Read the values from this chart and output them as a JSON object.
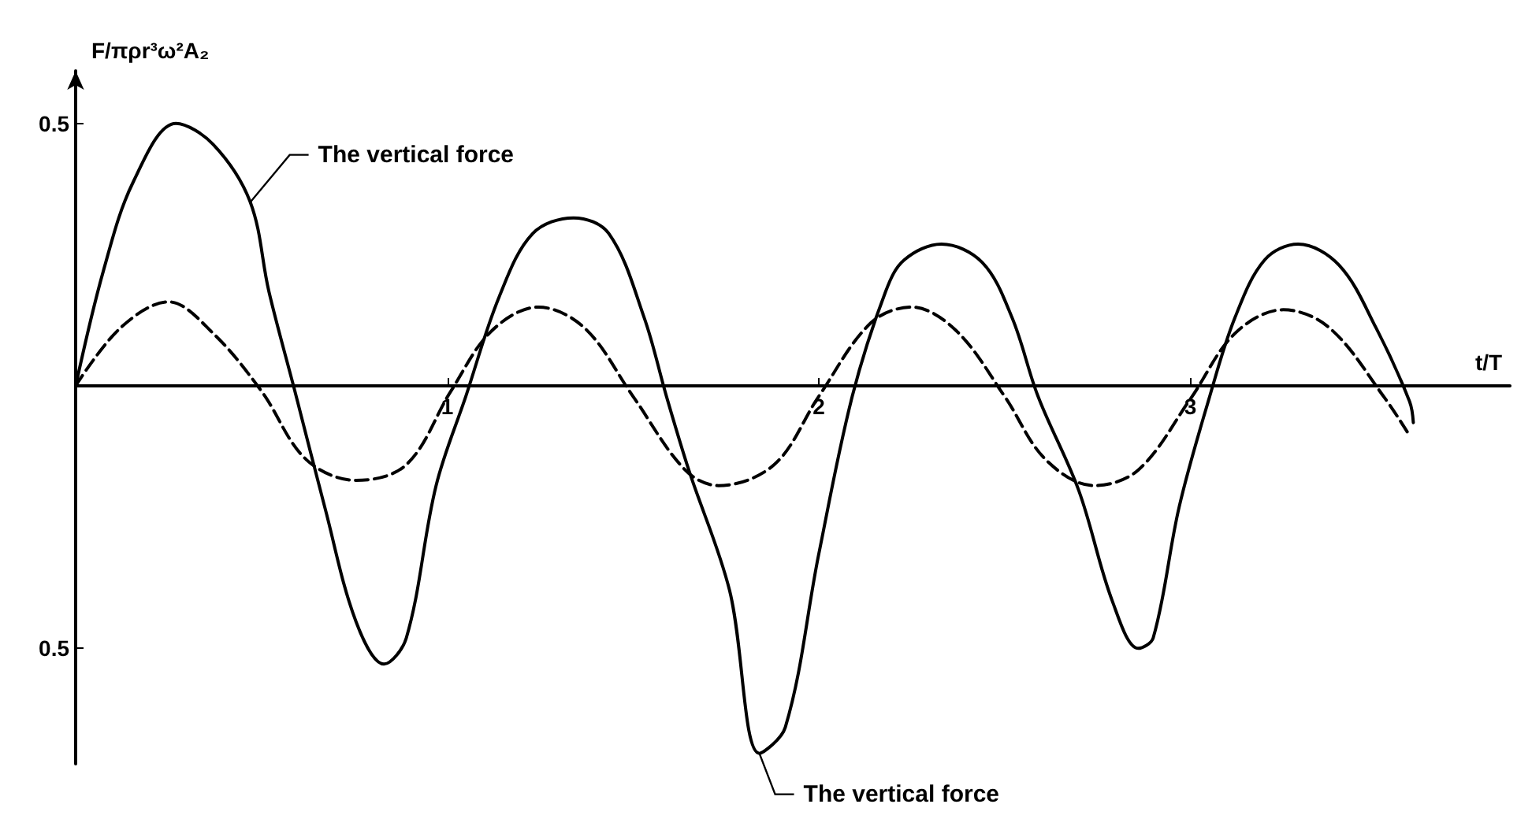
{
  "chart_data": {
    "type": "line",
    "ylabel": "F/πρr³ω²A₂",
    "xlabel": "t/T",
    "xlim": [
      0,
      3.86
    ],
    "xticks": [
      1,
      2,
      3
    ],
    "ylim": [
      -0.72,
      0.6
    ],
    "yticks": [
      {
        "value": -0.5,
        "label": "0.5"
      },
      0.5
    ],
    "grid": false,
    "marker": "none",
    "series": [
      {
        "color": "#000000",
        "line_style": "solid",
        "x": [
          0,
          0.075,
          0.156,
          0.27,
          0.37,
          0.47,
          0.52,
          0.59,
          0.67,
          0.755,
          0.83,
          0.89,
          0.97,
          1.05,
          1.14,
          1.23,
          1.34,
          1.435,
          1.53,
          1.59,
          1.65,
          1.76,
          1.84,
          1.91,
          2.0,
          2.09,
          2.18,
          2.23,
          2.33,
          2.44,
          2.52,
          2.59,
          2.7,
          2.79,
          2.86,
          2.9,
          2.97,
          3.05,
          3.12,
          3.2,
          3.29,
          3.4,
          3.5,
          3.59,
          3.6
        ],
        "values": [
          0,
          0.22,
          0.39,
          0.5,
          0.46,
          0.35,
          0.18,
          -0.01,
          -0.23,
          -0.45,
          -0.53,
          -0.48,
          -0.19,
          -0.02,
          0.17,
          0.29,
          0.32,
          0.29,
          0.13,
          -0.02,
          -0.16,
          -0.39,
          -0.7,
          -0.65,
          -0.32,
          -0.02,
          0.18,
          0.24,
          0.27,
          0.235,
          0.13,
          -0.02,
          -0.2,
          -0.41,
          -0.5,
          -0.48,
          -0.23,
          -0.025,
          0.13,
          0.24,
          0.27,
          0.23,
          0.11,
          -0.03,
          -0.07
        ]
      },
      {
        "color": "#000000",
        "line_style": "dashed",
        "x": [
          0,
          0.12,
          0.25,
          0.37,
          0.5,
          0.62,
          0.755,
          0.89,
          1.01,
          1.12,
          1.245,
          1.37,
          1.5,
          1.64,
          1.73,
          1.88,
          2.0,
          2.14,
          2.25,
          2.37,
          2.5,
          2.61,
          2.74,
          2.86,
          3.0,
          3.12,
          3.25,
          3.375,
          3.525,
          3.59
        ],
        "values": [
          0,
          0.11,
          0.16,
          0.1,
          -0.01,
          -0.14,
          -0.18,
          -0.15,
          -0.01,
          0.105,
          0.15,
          0.11,
          -0.02,
          -0.16,
          -0.19,
          -0.15,
          -0.02,
          0.12,
          0.15,
          0.105,
          -0.02,
          -0.14,
          -0.19,
          -0.16,
          -0.025,
          0.1,
          0.145,
          0.11,
          -0.025,
          -0.095
        ]
      }
    ],
    "annotations": [
      {
        "text": "The vertical force",
        "x": 0.47,
        "y": 0.35
      },
      {
        "text": "The vertical force",
        "x": 1.84,
        "y": -0.7
      }
    ]
  }
}
